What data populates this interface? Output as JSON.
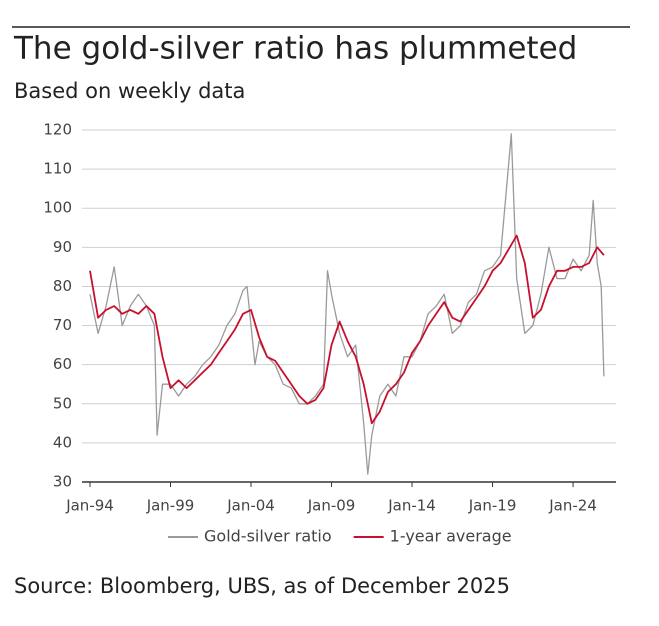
{
  "chart_data": {
    "type": "line",
    "title": "The gold-silver ratio has plummeted",
    "subtitle": "Based on weekly data",
    "source": "Source: Bloomberg, UBS, as of December 2025",
    "ylim": [
      30,
      120
    ],
    "yticks": [
      30,
      40,
      50,
      60,
      70,
      80,
      90,
      100,
      110,
      120
    ],
    "xlim": [
      "1994-01",
      "2026-09"
    ],
    "xticks": [
      {
        "value": "1994-01",
        "label": "Jan-94"
      },
      {
        "value": "1999-01",
        "label": "Jan-99"
      },
      {
        "value": "2004-01",
        "label": "Jan-04"
      },
      {
        "value": "2009-01",
        "label": "Jan-09"
      },
      {
        "value": "2014-01",
        "label": "Jan-14"
      },
      {
        "value": "2019-01",
        "label": "Jan-19"
      },
      {
        "value": "2024-01",
        "label": "Jan-24"
      }
    ],
    "grid": true,
    "legend": "bottom",
    "series": [
      {
        "name": "Gold-silver ratio",
        "color": "#9a9a9a",
        "x": [
          "1994-01",
          "1994-07",
          "1995-01",
          "1995-07",
          "1996-01",
          "1996-07",
          "1997-01",
          "1997-07",
          "1998-01",
          "1998-03",
          "1998-07",
          "1999-01",
          "1999-07",
          "2000-01",
          "2000-07",
          "2001-01",
          "2001-07",
          "2002-01",
          "2002-07",
          "2003-01",
          "2003-07",
          "2003-10",
          "2004-04",
          "2004-07",
          "2005-01",
          "2005-07",
          "2006-01",
          "2006-07",
          "2007-01",
          "2007-07",
          "2008-01",
          "2008-07",
          "2008-10",
          "2009-01",
          "2009-07",
          "2010-01",
          "2010-07",
          "2011-01",
          "2011-04",
          "2011-07",
          "2012-01",
          "2012-07",
          "2013-01",
          "2013-07",
          "2014-01",
          "2014-07",
          "2015-01",
          "2015-07",
          "2016-01",
          "2016-07",
          "2017-01",
          "2017-07",
          "2018-01",
          "2018-07",
          "2019-01",
          "2019-07",
          "2020-03",
          "2020-07",
          "2021-01",
          "2021-07",
          "2022-01",
          "2022-07",
          "2023-01",
          "2023-07",
          "2024-01",
          "2024-07",
          "2025-01",
          "2025-04",
          "2025-07",
          "2025-10",
          "2025-12"
        ],
        "values": [
          78,
          68,
          75,
          85,
          70,
          75,
          78,
          75,
          70,
          42,
          55,
          55,
          52,
          55,
          57,
          60,
          62,
          65,
          70,
          73,
          79,
          80,
          60,
          66,
          62,
          60,
          55,
          54,
          50,
          50,
          52,
          55,
          84,
          78,
          68,
          62,
          65,
          45,
          32,
          42,
          52,
          55,
          52,
          62,
          62,
          66,
          73,
          75,
          78,
          68,
          70,
          76,
          78,
          84,
          85,
          88,
          119,
          82,
          68,
          70,
          78,
          90,
          82,
          82,
          87,
          84,
          88,
          102,
          86,
          80,
          57
        ]
      },
      {
        "name": "1-year average",
        "color": "#c8102e",
        "x": [
          "1994-01",
          "1994-07",
          "1995-01",
          "1995-07",
          "1996-01",
          "1996-07",
          "1997-01",
          "1997-07",
          "1998-01",
          "1998-07",
          "1999-01",
          "1999-07",
          "2000-01",
          "2000-07",
          "2001-01",
          "2001-07",
          "2002-01",
          "2002-07",
          "2003-01",
          "2003-07",
          "2004-01",
          "2004-07",
          "2005-01",
          "2005-07",
          "2006-01",
          "2006-07",
          "2007-01",
          "2007-07",
          "2008-01",
          "2008-07",
          "2009-01",
          "2009-07",
          "2010-01",
          "2010-07",
          "2011-01",
          "2011-07",
          "2012-01",
          "2012-07",
          "2013-01",
          "2013-07",
          "2014-01",
          "2014-07",
          "2015-01",
          "2015-07",
          "2016-01",
          "2016-07",
          "2017-01",
          "2017-07",
          "2018-01",
          "2018-07",
          "2019-01",
          "2019-07",
          "2020-07",
          "2021-01",
          "2021-07",
          "2022-01",
          "2022-07",
          "2023-01",
          "2023-07",
          "2024-01",
          "2024-07",
          "2025-01",
          "2025-07",
          "2025-12"
        ],
        "values": [
          84,
          72,
          74,
          75,
          73,
          74,
          73,
          75,
          73,
          62,
          54,
          56,
          54,
          56,
          58,
          60,
          63,
          66,
          69,
          73,
          74,
          67,
          62,
          61,
          58,
          55,
          52,
          50,
          51,
          54,
          65,
          71,
          66,
          62,
          55,
          45,
          48,
          53,
          55,
          58,
          63,
          66,
          70,
          73,
          76,
          72,
          71,
          74,
          77,
          80,
          84,
          86,
          93,
          86,
          72,
          74,
          80,
          84,
          84,
          85,
          85,
          86,
          90,
          88
        ]
      }
    ]
  }
}
